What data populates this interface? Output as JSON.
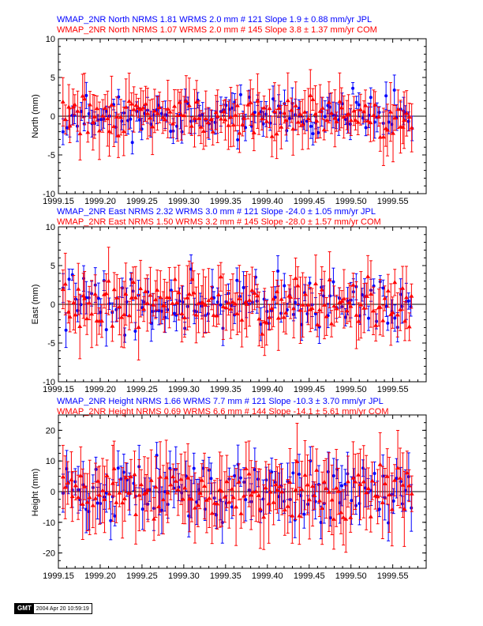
{
  "colors": {
    "jpl": "#0000ff",
    "com": "#ff0000",
    "axis": "#000000"
  },
  "chart_data": [
    {
      "type": "scatter",
      "ylabel": "North (mm)",
      "header_lines": [
        "WMAP_2NR North NRMS 1.81 WRMS  2.0 mm # 121 Slope    1.9 ±  0.88 mm/yr JPL",
        "WMAP_2NR North NRMS 1.07 WRMS  2.0 mm # 145 Slope    3.8 ±  1.37 mm/yr COM"
      ],
      "xlim": [
        1999.15,
        1999.59
      ],
      "ylim": [
        -10,
        10
      ],
      "xticks": [
        "1999.15",
        "1999.20",
        "1999.25",
        "1999.30",
        "1999.35",
        "1999.40",
        "1999.45",
        "1999.50",
        "1999.55"
      ],
      "yticks": [
        "10",
        "5",
        "0",
        "-5",
        "-10"
      ],
      "series": [
        {
          "name": "JPL",
          "n": 121,
          "amp": 1.8,
          "err": 1.6,
          "noise_seed": 11
        },
        {
          "name": "COM",
          "n": 145,
          "amp": 1.6,
          "err": 3.0,
          "noise_seed": 29
        }
      ]
    },
    {
      "type": "scatter",
      "ylabel": "East (mm)",
      "header_lines": [
        "WMAP_2NR East NRMS 2.32 WRMS  3.0 mm # 121 Slope  -24.0 ±  1.05 mm/yr JPL",
        "WMAP_2NR East NRMS 1.50 WRMS  3.2 mm # 145 Slope  -28.0 ±  1.57 mm/yr COM"
      ],
      "xlim": [
        1999.15,
        1999.59
      ],
      "ylim": [
        -10,
        10
      ],
      "xticks": [
        "1999.15",
        "1999.20",
        "1999.25",
        "1999.30",
        "1999.35",
        "1999.40",
        "1999.45",
        "1999.50",
        "1999.55"
      ],
      "yticks": [
        "10",
        "5",
        "0",
        "-5",
        "-10"
      ],
      "series": [
        {
          "name": "JPL",
          "n": 121,
          "amp": 2.6,
          "err": 1.8,
          "noise_seed": 41
        },
        {
          "name": "COM",
          "n": 145,
          "amp": 2.4,
          "err": 3.4,
          "noise_seed": 57
        }
      ]
    },
    {
      "type": "scatter",
      "ylabel": "Height (mm)",
      "header_lines": [
        "WMAP_2NR Height NRMS 1.66 WRMS  7.7 mm # 121 Slope  -10.3 ±  3.70 mm/yr JPL",
        "WMAP_2NR Height NRMS 0.69 WRMS  6.6 mm # 144 Slope  -14.1 ±  5.61 mm/yr COM"
      ],
      "xlim": [
        1999.15,
        1999.59
      ],
      "ylim": [
        -25,
        25
      ],
      "xticks": [
        "1999.15",
        "1999.20",
        "1999.25",
        "1999.30",
        "1999.35",
        "1999.40",
        "1999.45",
        "1999.50",
        "1999.55"
      ],
      "yticks": [
        "20",
        "10",
        "0",
        "-10",
        "-20"
      ],
      "ytick_values": [
        20,
        10,
        0,
        -10,
        -20
      ],
      "series": [
        {
          "name": "JPL",
          "n": 121,
          "amp": 7.0,
          "err": 6.0,
          "noise_seed": 71
        },
        {
          "name": "COM",
          "n": 144,
          "amp": 6.0,
          "err": 10.0,
          "noise_seed": 89
        }
      ]
    }
  ],
  "footer": {
    "logo": "GMT",
    "stamp": "2004 Apr 20 10:59:19"
  }
}
